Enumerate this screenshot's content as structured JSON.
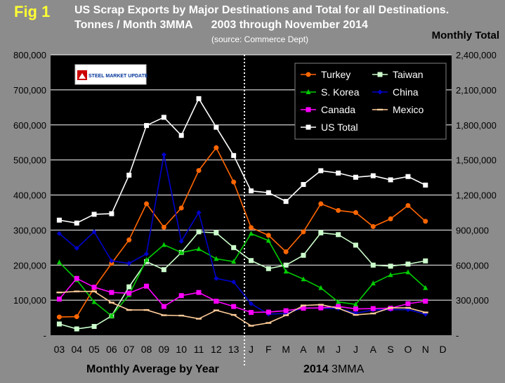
{
  "fig_label": "Fig 1",
  "title_line1": "US Scrap Exports by Major Destinations and Total for all Destinations.",
  "title_line2": "Tonnes / Month 3MMA      2003 through November 2014",
  "source": "(source:  Commerce Dept)",
  "right_axis_title": "Monthly Total",
  "x_group_left": "Monthly Average by Year",
  "x_group_right_bold": "2014",
  "x_group_right": "3MMA",
  "logo_text": "STEEL MARKET UPDATE",
  "chart_data": {
    "type": "line",
    "categories": [
      "03",
      "04",
      "05",
      "06",
      "07",
      "08",
      "09",
      "10",
      "11",
      "12",
      "13",
      "J",
      "F",
      "M",
      "A",
      "M",
      "J",
      "J",
      "A",
      "S",
      "O",
      "N",
      "D"
    ],
    "left_ylim": [
      0,
      800000
    ],
    "left_ticks": [
      "-",
      "100,000",
      "200,000",
      "300,000",
      "400,000",
      "500,000",
      "600,000",
      "700,000",
      "800,000"
    ],
    "right_ylim": [
      0,
      2400000
    ],
    "right_ticks": [
      "-",
      "300,000",
      "600,000",
      "900,000",
      "1,200,000",
      "1,500,000",
      "1,800,000",
      "2,100,000",
      "2,400,000"
    ],
    "grid": true,
    "legend_position": "top-right",
    "series": [
      {
        "name": "Turkey",
        "color": "#ff6600",
        "axis": "left",
        "marker": "circle",
        "values": [
          52000,
          53000,
          135000,
          205000,
          272000,
          375000,
          308000,
          363000,
          470000,
          535000,
          437000,
          307000,
          285000,
          238000,
          295000,
          375000,
          356000,
          350000,
          310000,
          332000,
          370000,
          325000,
          null
        ]
      },
      {
        "name": "Taiwan",
        "color": "#ccffcc",
        "axis": "left",
        "marker": "square",
        "values": [
          32000,
          18000,
          25000,
          55000,
          138000,
          210000,
          187000,
          236000,
          295000,
          292000,
          250000,
          213000,
          190000,
          200000,
          228000,
          292000,
          287000,
          257000,
          200000,
          197000,
          203000,
          212000,
          null
        ]
      },
      {
        "name": "S. Korea",
        "color": "#00cc00",
        "axis": "left",
        "marker": "triangle",
        "values": [
          208000,
          158000,
          95000,
          55000,
          115000,
          215000,
          258000,
          236000,
          246000,
          218000,
          210000,
          290000,
          270000,
          182000,
          160000,
          135000,
          95000,
          88000,
          148000,
          172000,
          180000,
          135000,
          null
        ]
      },
      {
        "name": "China",
        "color": "#0000cc",
        "axis": "left",
        "marker": "diamond",
        "values": [
          290000,
          248000,
          295000,
          212000,
          205000,
          232000,
          515000,
          268000,
          350000,
          162000,
          152000,
          90000,
          60000,
          62000,
          78000,
          77000,
          76000,
          63000,
          72000,
          73000,
          73000,
          60000,
          null
        ]
      },
      {
        "name": "Canada",
        "color": "#ff00ff",
        "axis": "left",
        "marker": "square",
        "values": [
          103000,
          162000,
          137000,
          122000,
          120000,
          140000,
          82000,
          113000,
          122000,
          97000,
          82000,
          65000,
          66000,
          70000,
          77000,
          78000,
          82000,
          75000,
          76000,
          77000,
          90000,
          97000,
          null
        ]
      },
      {
        "name": "Mexico",
        "color": "#ffcc99",
        "axis": "left",
        "marker": "dash",
        "values": [
          122000,
          125000,
          125000,
          93000,
          72000,
          72000,
          57000,
          56000,
          47000,
          71000,
          58000,
          27000,
          35000,
          57000,
          85000,
          87000,
          77000,
          58000,
          62000,
          78000,
          78000,
          65000,
          null
        ]
      },
      {
        "name": "US Total",
        "color": "#ffffff",
        "axis": "right",
        "marker": "square",
        "values": [
          985000,
          960000,
          1035000,
          1040000,
          1370000,
          1795000,
          1865000,
          1710000,
          2025000,
          1780000,
          1538000,
          1235000,
          1220000,
          1145000,
          1290000,
          1408000,
          1388000,
          1352000,
          1365000,
          1330000,
          1358000,
          1285000,
          null
        ]
      }
    ]
  }
}
